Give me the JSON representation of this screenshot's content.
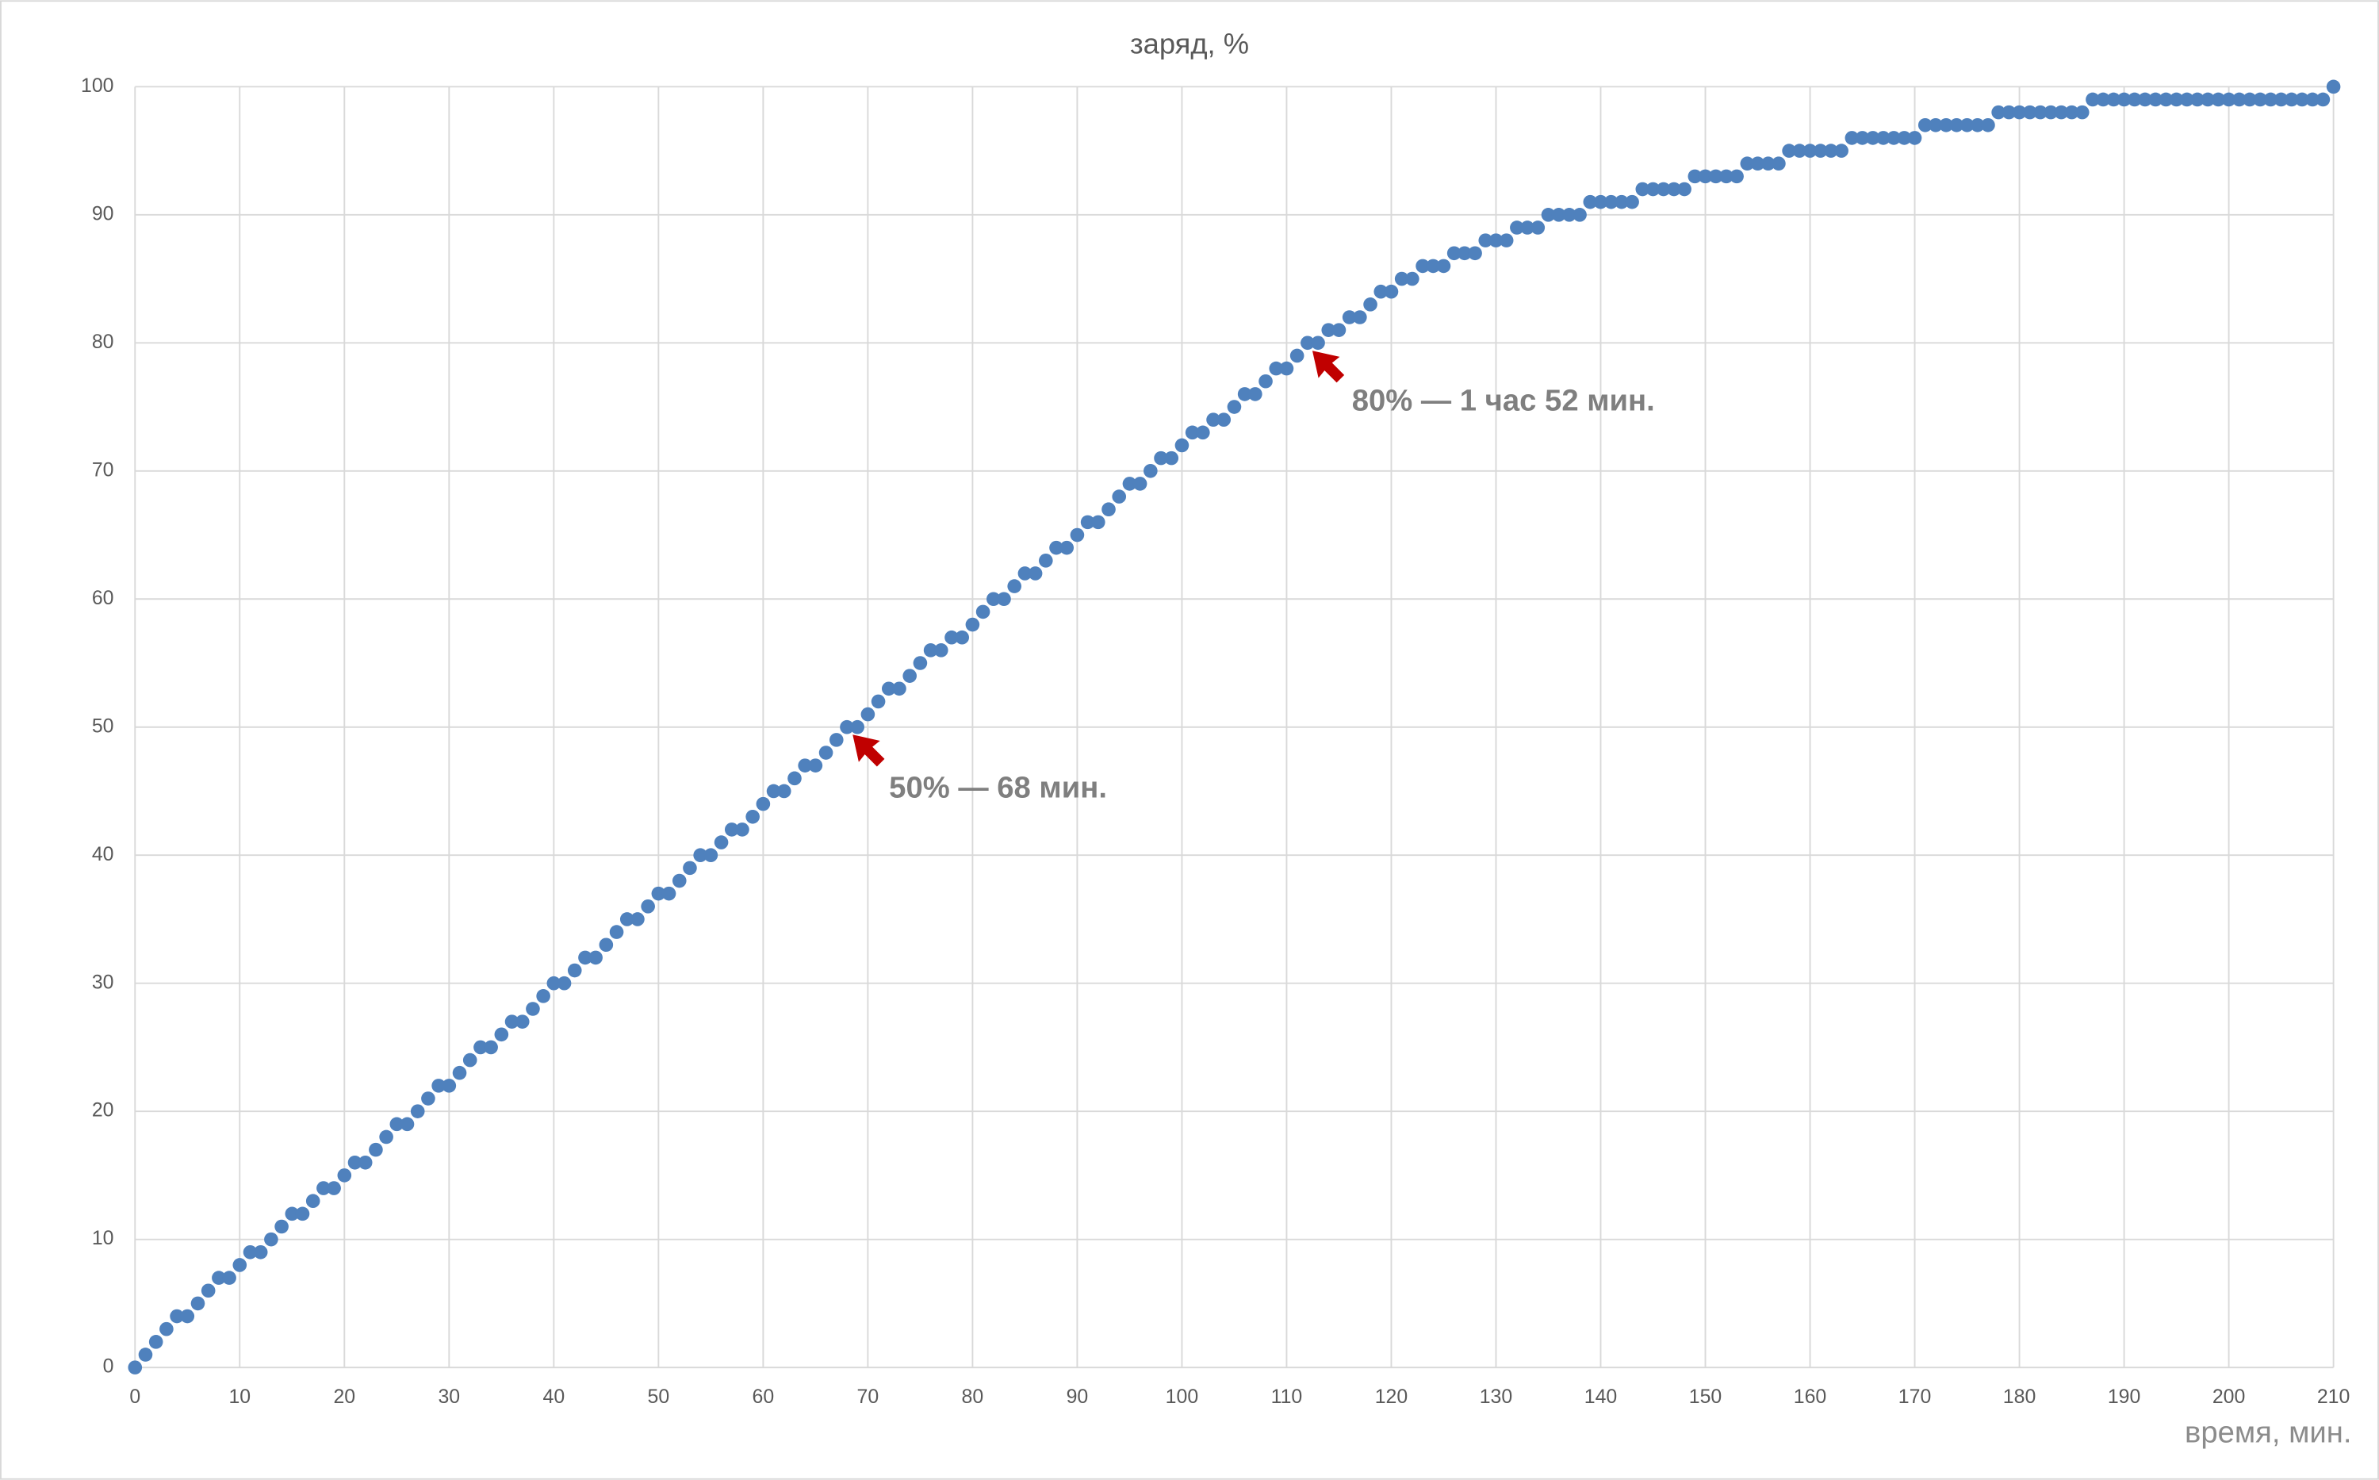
{
  "chart_data": {
    "type": "scatter",
    "title": "заряд, %",
    "x_label": "время, мин.",
    "x": [
      0,
      1,
      2,
      3,
      4,
      5,
      6,
      7,
      8,
      9,
      10,
      11,
      12,
      13,
      14,
      15,
      16,
      17,
      18,
      19,
      20,
      21,
      22,
      23,
      24,
      25,
      26,
      27,
      28,
      29,
      30,
      31,
      32,
      33,
      34,
      35,
      36,
      37,
      38,
      39,
      40,
      41,
      42,
      43,
      44,
      45,
      46,
      47,
      48,
      49,
      50,
      51,
      52,
      53,
      54,
      55,
      56,
      57,
      58,
      59,
      60,
      61,
      62,
      63,
      64,
      65,
      66,
      67,
      68,
      69,
      70,
      71,
      72,
      73,
      74,
      75,
      76,
      77,
      78,
      79,
      80,
      81,
      82,
      83,
      84,
      85,
      86,
      87,
      88,
      89,
      90,
      91,
      92,
      93,
      94,
      95,
      96,
      97,
      98,
      99,
      100,
      101,
      102,
      103,
      104,
      105,
      106,
      107,
      108,
      109,
      110,
      111,
      112,
      113,
      114,
      115,
      116,
      117,
      118,
      119,
      120,
      121,
      122,
      123,
      124,
      125,
      126,
      127,
      128,
      129,
      130,
      131,
      132,
      133,
      134,
      135,
      136,
      137,
      138,
      139,
      140,
      141,
      142,
      143,
      144,
      145,
      146,
      147,
      148,
      149,
      150,
      151,
      152,
      153,
      154,
      155,
      156,
      157,
      158,
      159,
      160,
      161,
      162,
      163,
      164,
      165,
      166,
      167,
      168,
      169,
      170,
      171,
      172,
      173,
      174,
      175,
      176,
      177,
      178,
      179,
      180,
      181,
      182,
      183,
      184,
      185,
      186,
      187,
      188,
      189,
      190,
      191,
      192,
      193,
      194,
      195,
      196,
      197,
      198,
      199,
      200,
      201,
      202,
      203,
      204,
      205,
      206,
      207,
      208,
      209,
      210
    ],
    "values": [
      0,
      1,
      2,
      3,
      4,
      4,
      5,
      6,
      7,
      7,
      8,
      9,
      9,
      10,
      11,
      12,
      12,
      13,
      14,
      14,
      15,
      16,
      16,
      17,
      18,
      19,
      19,
      20,
      21,
      22,
      22,
      23,
      24,
      25,
      25,
      26,
      27,
      27,
      28,
      29,
      30,
      30,
      31,
      32,
      32,
      33,
      34,
      35,
      35,
      36,
      37,
      37,
      38,
      39,
      40,
      40,
      41,
      42,
      42,
      43,
      44,
      45,
      45,
      46,
      47,
      47,
      48,
      49,
      50,
      50,
      51,
      52,
      53,
      53,
      54,
      55,
      56,
      56,
      57,
      57,
      58,
      59,
      60,
      60,
      61,
      62,
      62,
      63,
      64,
      64,
      65,
      66,
      66,
      67,
      68,
      69,
      69,
      70,
      71,
      71,
      72,
      73,
      73,
      74,
      74,
      75,
      76,
      76,
      77,
      78,
      78,
      79,
      80,
      80,
      81,
      81,
      82,
      82,
      83,
      84,
      84,
      85,
      85,
      86,
      86,
      86,
      87,
      87,
      87,
      88,
      88,
      88,
      89,
      89,
      89,
      90,
      90,
      90,
      90,
      91,
      91,
      91,
      91,
      91,
      92,
      92,
      92,
      92,
      92,
      93,
      93,
      93,
      93,
      93,
      94,
      94,
      94,
      94,
      95,
      95,
      95,
      95,
      95,
      95,
      96,
      96,
      96,
      96,
      96,
      96,
      96,
      97,
      97,
      97,
      97,
      97,
      97,
      97,
      98,
      98,
      98,
      98,
      98,
      98,
      98,
      98,
      98,
      99,
      99,
      99,
      99,
      99,
      99,
      99,
      99,
      99,
      99,
      99,
      99,
      99,
      99,
      99,
      99,
      99,
      99,
      99,
      99,
      99,
      99,
      99,
      100
    ],
    "color": "#4f81bd",
    "xlim": [
      0,
      210
    ],
    "xticks": [
      0,
      10,
      20,
      30,
      40,
      50,
      60,
      70,
      80,
      90,
      100,
      110,
      120,
      130,
      140,
      150,
      160,
      170,
      180,
      190,
      200,
      210
    ],
    "ylim": [
      0,
      100
    ],
    "yticks": [
      0,
      10,
      20,
      30,
      40,
      50,
      60,
      70,
      80,
      90,
      100
    ],
    "grid": true,
    "annotations": [
      "50% — 68 мин.",
      "80% — 1 час 52 мин."
    ]
  }
}
